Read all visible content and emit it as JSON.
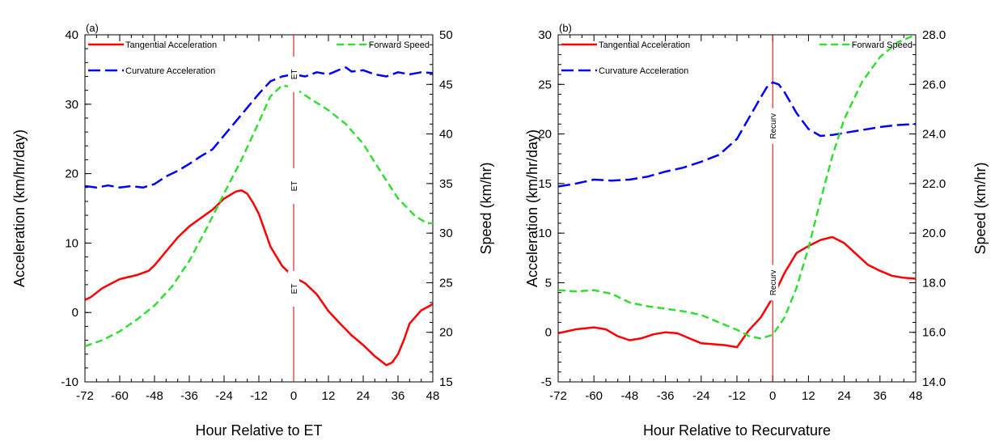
{
  "chart_data": [
    {
      "type": "line",
      "panel_label": "(a)",
      "xlabel": "Hour Relative to ET",
      "ylabel": "Acceleration (km/hr/day)",
      "y2label": "Speed (km/hr)",
      "xlim": [
        -72,
        48
      ],
      "ylim": [
        -10,
        40
      ],
      "y2lim": [
        15,
        50
      ],
      "xticks": [
        -72,
        -60,
        -48,
        -36,
        -24,
        -12,
        0,
        12,
        24,
        36,
        48
      ],
      "xtick_labels": [
        "-72",
        "-60",
        "-48",
        "-36",
        "-24",
        "-12",
        "0",
        "12",
        "24",
        "36",
        "48"
      ],
      "yticks": [
        -10,
        0,
        10,
        20,
        30,
        40
      ],
      "ytick_labels": [
        "-10",
        "0",
        "10",
        "20",
        "30",
        "40"
      ],
      "y2ticks": [
        15,
        20,
        25,
        30,
        35,
        40,
        45,
        50
      ],
      "y2tick_labels": [
        "15",
        "20",
        "25",
        "30",
        "35",
        "40",
        "45",
        "50"
      ],
      "marker": {
        "x": 0,
        "label": "ET",
        "color": "#cc0000"
      },
      "series": [
        {
          "name": "Tangential Acceleration",
          "axis": "left",
          "color": "#ff0000",
          "dash": "solid",
          "x": [
            -72,
            -70,
            -66,
            -60,
            -54,
            -50,
            -48,
            -44,
            -40,
            -36,
            -32,
            -28,
            -24,
            -20,
            -18,
            -16,
            -14,
            -12,
            -8,
            -4,
            0,
            4,
            8,
            12,
            16,
            20,
            24,
            28,
            32,
            34,
            36,
            38,
            40,
            44,
            48
          ],
          "y": [
            1.8,
            2.2,
            3.5,
            4.8,
            5.4,
            6.0,
            6.8,
            8.8,
            10.8,
            12.4,
            13.6,
            14.8,
            16.4,
            17.4,
            17.6,
            17.1,
            15.8,
            14.2,
            9.5,
            6.7,
            5.1,
            4.2,
            2.6,
            0.2,
            -1.6,
            -3.3,
            -4.7,
            -6.3,
            -7.6,
            -7.2,
            -6.0,
            -4.0,
            -1.6,
            0.3,
            1.2
          ]
        },
        {
          "name": "Curvature Acceleration",
          "axis": "left",
          "color": "#0000ff",
          "dash": "long-dash",
          "x": [
            -72,
            -68,
            -64,
            -60,
            -56,
            -52,
            -48,
            -44,
            -40,
            -36,
            -32,
            -28,
            -24,
            -20,
            -16,
            -12,
            -8,
            -4,
            0,
            4,
            8,
            12,
            16,
            18,
            20,
            24,
            28,
            32,
            36,
            40,
            44,
            48
          ],
          "y": [
            18.2,
            18.0,
            18.3,
            18.0,
            18.2,
            18.0,
            18.5,
            19.6,
            20.4,
            21.4,
            22.5,
            23.5,
            25.5,
            27.5,
            29.5,
            31.5,
            33.3,
            34.0,
            34.3,
            34.0,
            34.6,
            34.3,
            35.0,
            35.3,
            34.7,
            34.9,
            34.3,
            34.0,
            34.6,
            34.3,
            34.6,
            34.5
          ]
        },
        {
          "name": "Forward Speed",
          "axis": "right",
          "color": "#33dd33",
          "dash": "dash",
          "x": [
            -72,
            -66,
            -60,
            -54,
            -48,
            -42,
            -36,
            -30,
            -24,
            -18,
            -12,
            -8,
            -4,
            0,
            6,
            12,
            18,
            24,
            30,
            36,
            42,
            46,
            48
          ],
          "y": [
            18.6,
            19.2,
            20.1,
            21.3,
            22.7,
            24.6,
            27.2,
            30.5,
            34.0,
            37.4,
            41.2,
            43.8,
            44.9,
            44.7,
            43.5,
            42.4,
            41.0,
            39.0,
            36.2,
            33.5,
            31.7,
            31.0,
            31.0
          ]
        }
      ]
    },
    {
      "type": "line",
      "panel_label": "(b)",
      "xlabel": "Hour Relative to Recurvature",
      "ylabel": "Acceleration (km/hr/day)",
      "y2label": "Speed (km/hr)",
      "xlim": [
        -72,
        48
      ],
      "ylim": [
        -5,
        30
      ],
      "y2lim": [
        14,
        28
      ],
      "xticks": [
        -72,
        -60,
        -48,
        -36,
        -24,
        -12,
        0,
        12,
        24,
        36,
        48
      ],
      "xtick_labels": [
        "-72",
        "-60",
        "-48",
        "-36",
        "-24",
        "-12",
        "0",
        "12",
        "24",
        "36",
        "48"
      ],
      "yticks": [
        -5,
        0,
        5,
        10,
        15,
        20,
        25,
        30
      ],
      "ytick_labels": [
        "-5",
        "0",
        "5",
        "10",
        "15",
        "20",
        "25",
        "30"
      ],
      "y2ticks": [
        14,
        16,
        18,
        20,
        22,
        24,
        26,
        28
      ],
      "y2tick_labels": [
        "14.0",
        "16.0",
        "18.0",
        "20.0",
        "22.0",
        "24.0",
        "26.0",
        "28.0"
      ],
      "marker": {
        "x": 0,
        "label": "Recurv",
        "color": "#cc0000"
      },
      "series": [
        {
          "name": "Tangential Acceleration",
          "axis": "left",
          "color": "#ff0000",
          "dash": "solid",
          "x": [
            -72,
            -66,
            -60,
            -56,
            -52,
            -48,
            -44,
            -40,
            -36,
            -32,
            -28,
            -24,
            -20,
            -16,
            -12,
            -8,
            -4,
            0,
            4,
            8,
            12,
            16,
            20,
            24,
            28,
            32,
            36,
            40,
            44,
            48
          ],
          "y": [
            -0.1,
            0.3,
            0.5,
            0.3,
            -0.4,
            -0.8,
            -0.6,
            -0.2,
            0.0,
            -0.1,
            -0.6,
            -1.1,
            -1.2,
            -1.3,
            -1.5,
            0.2,
            1.5,
            3.5,
            6.0,
            8.0,
            8.7,
            9.3,
            9.6,
            9.0,
            7.9,
            6.8,
            6.2,
            5.7,
            5.5,
            5.4
          ]
        },
        {
          "name": "Curvature Acceleration",
          "axis": "left",
          "color": "#0000ff",
          "dash": "long-dash",
          "x": [
            -72,
            -66,
            -60,
            -54,
            -48,
            -42,
            -36,
            -30,
            -24,
            -18,
            -12,
            -8,
            -4,
            -2,
            0,
            2,
            4,
            8,
            12,
            16,
            20,
            24,
            30,
            36,
            42,
            48
          ],
          "y": [
            14.7,
            15.0,
            15.4,
            15.3,
            15.4,
            15.7,
            16.2,
            16.6,
            17.2,
            17.9,
            19.5,
            21.6,
            23.7,
            24.7,
            25.2,
            25.0,
            24.2,
            22.1,
            20.5,
            19.8,
            19.9,
            20.1,
            20.4,
            20.7,
            20.9,
            21.0
          ]
        },
        {
          "name": "Forward Speed",
          "axis": "right",
          "color": "#33dd33",
          "dash": "dash",
          "x": [
            -72,
            -66,
            -60,
            -54,
            -48,
            -42,
            -36,
            -30,
            -24,
            -18,
            -12,
            -8,
            -4,
            0,
            4,
            8,
            12,
            16,
            20,
            24,
            30,
            36,
            42,
            48
          ],
          "y": [
            17.7,
            17.65,
            17.7,
            17.55,
            17.2,
            17.05,
            16.95,
            16.85,
            16.7,
            16.4,
            16.1,
            15.85,
            15.75,
            15.9,
            16.6,
            17.8,
            19.4,
            21.3,
            23.1,
            24.6,
            26.1,
            27.1,
            27.7,
            28.0
          ]
        }
      ]
    }
  ]
}
